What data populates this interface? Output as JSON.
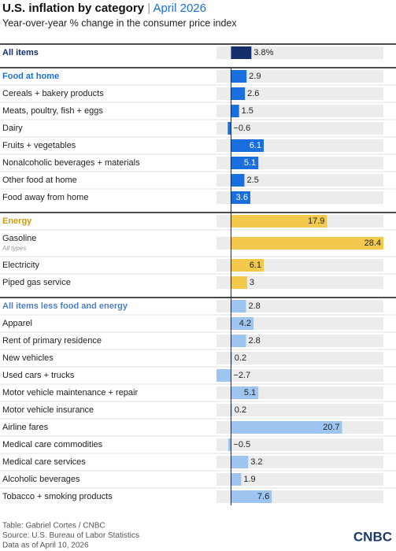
{
  "chart_data": {
    "type": "bar",
    "title": "U.S. inflation by category",
    "title_date": "April 2026",
    "subtitle": "Year-over-year % change in the consumer price index",
    "xlim": [
      -2.7,
      28.4
    ],
    "rows": [
      {
        "label": "All items",
        "value": 3.8,
        "value_label": "3.8%",
        "color": "#13306b",
        "header": true
      },
      {
        "label": "Food at home",
        "value": 2.9,
        "color": "#1a6fdf",
        "header": true
      },
      {
        "label": "Cereals + bakery products",
        "value": 2.6,
        "color": "#1a6fdf"
      },
      {
        "label": "Meats, poultry, fish + eggs",
        "value": 1.5,
        "color": "#1a6fdf"
      },
      {
        "label": "Dairy",
        "value": -0.6,
        "value_label": "−0.6",
        "color": "#1a6fdf"
      },
      {
        "label": "Fruits + vegetables",
        "value": 6.1,
        "color": "#1a6fdf"
      },
      {
        "label": "Nonalcoholic beverages + materials",
        "value": 5.1,
        "color": "#1a6fdf"
      },
      {
        "label": "Other food at home",
        "value": 2.5,
        "color": "#1a6fdf"
      },
      {
        "label": "Food away from home",
        "value": 3.6,
        "color": "#1a6fdf"
      },
      {
        "label": "Energy",
        "value": 17.9,
        "color": "#f2c94c",
        "header": true,
        "header_color": "#c99a12"
      },
      {
        "label": "Gasoline",
        "note": "All types",
        "value": 28.4,
        "color": "#f2c94c"
      },
      {
        "label": "Electricity",
        "value": 6.1,
        "color": "#f2c94c"
      },
      {
        "label": "Piped gas service",
        "value": 3,
        "color": "#f2c94c"
      },
      {
        "label": "All items less food and energy",
        "value": 2.8,
        "color": "#9ec5f0",
        "header": true,
        "header_color": "#4f7fc0"
      },
      {
        "label": "Apparel",
        "value": 4.2,
        "color": "#9ec5f0"
      },
      {
        "label": "Rent of primary residence",
        "value": 2.8,
        "color": "#9ec5f0"
      },
      {
        "label": "New vehicles",
        "value": 0.2,
        "color": "#9ec5f0"
      },
      {
        "label": "Used cars + trucks",
        "value": -2.7,
        "value_label": "−2.7",
        "color": "#9ec5f0"
      },
      {
        "label": "Motor vehicle maintenance + repair",
        "value": 5.1,
        "color": "#9ec5f0"
      },
      {
        "label": "Motor vehicle insurance",
        "value": 0.2,
        "color": "#9ec5f0"
      },
      {
        "label": "Airline fares",
        "value": 20.7,
        "color": "#9ec5f0"
      },
      {
        "label": "Medical care commodities",
        "value": -0.5,
        "value_label": "−0.5",
        "color": "#9ec5f0"
      },
      {
        "label": "Medical care services",
        "value": 3.2,
        "color": "#9ec5f0"
      },
      {
        "label": "Alcoholic beverages",
        "value": 1.9,
        "color": "#9ec5f0"
      },
      {
        "label": "Tobacco + smoking products",
        "value": 7.6,
        "color": "#9ec5f0"
      }
    ],
    "footer": [
      "Table: Gabriel Cortes / CNBC",
      "Source: U.S. Bureau of Labor Statistics",
      "Data as of April 10, 2026"
    ],
    "logo": "CNBC"
  }
}
